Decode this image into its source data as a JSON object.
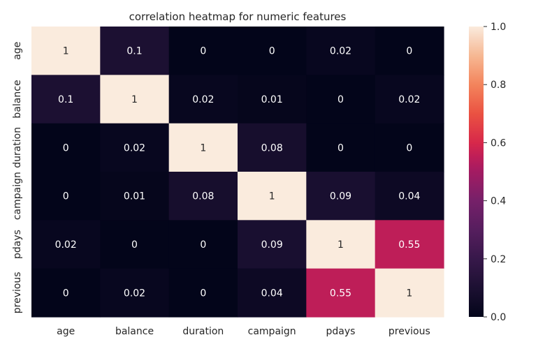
{
  "chart_data": {
    "type": "heatmap",
    "title": "correlation heatmap for numeric features",
    "x_labels": [
      "age",
      "balance",
      "duration",
      "campaign",
      "pdays",
      "previous"
    ],
    "y_labels": [
      "age",
      "balance",
      "duration",
      "campaign",
      "pdays",
      "previous"
    ],
    "values": [
      [
        1,
        0.1,
        0,
        0,
        0.02,
        0
      ],
      [
        0.1,
        1,
        0.02,
        0.01,
        0,
        0.02
      ],
      [
        0,
        0.02,
        1,
        0.08,
        0,
        0
      ],
      [
        0,
        0.01,
        0.08,
        1,
        0.09,
        0.04
      ],
      [
        0.02,
        0,
        0,
        0.09,
        1,
        0.55
      ],
      [
        0,
        0.02,
        0,
        0.04,
        0.55,
        1
      ]
    ],
    "value_labels": [
      [
        "1",
        "0.1",
        "0",
        "0",
        "0.02",
        "0"
      ],
      [
        "0.1",
        "1",
        "0.02",
        "0.01",
        "0",
        "0.02"
      ],
      [
        "0",
        "0.02",
        "1",
        "0.08",
        "0",
        "0"
      ],
      [
        "0",
        "0.01",
        "0.08",
        "1",
        "0.09",
        "0.04"
      ],
      [
        "0.02",
        "0",
        "0",
        "0.09",
        "1",
        "0.55"
      ],
      [
        "0",
        "0.02",
        "0",
        "0.04",
        "0.55",
        "1"
      ]
    ],
    "color_range": [
      0.0,
      1.0
    ],
    "colormap": "rocket",
    "colorbar": {
      "ticks": [
        0.0,
        0.2,
        0.4,
        0.6,
        0.8,
        1.0
      ],
      "tick_labels": [
        "0.0",
        "0.2",
        "0.4",
        "0.6",
        "0.8",
        "1.0"
      ],
      "position": "right"
    },
    "colors": {
      "low": "#03051a",
      "high": "#faebdd",
      "text_on_dark": "#ffffff",
      "text_on_light": "#262626"
    }
  }
}
